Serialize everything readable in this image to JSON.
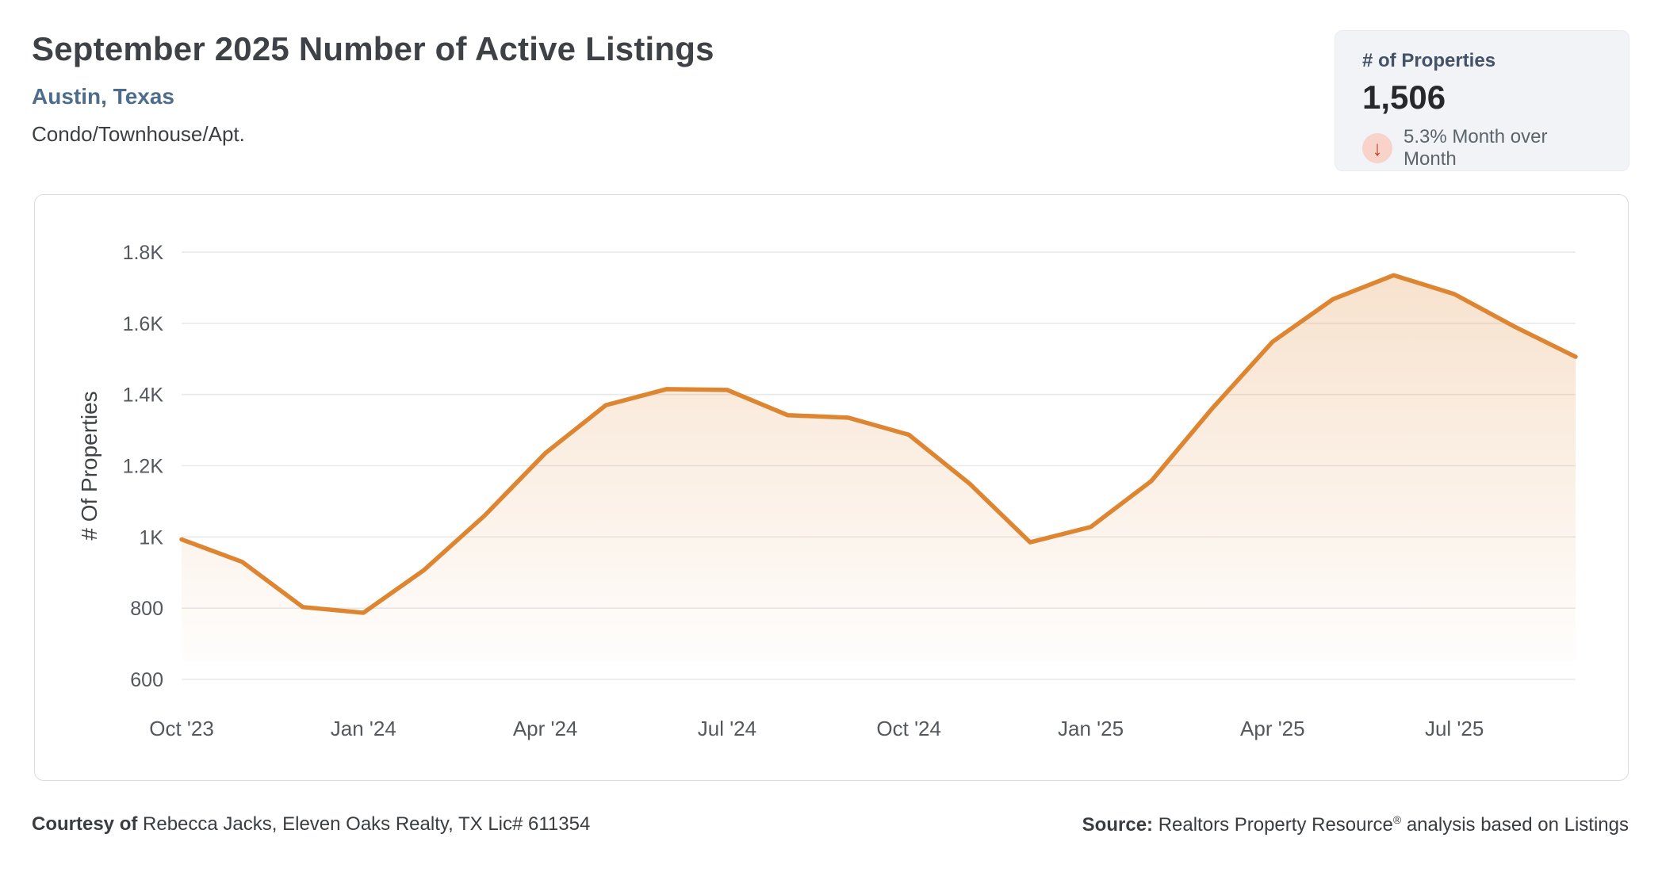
{
  "header": {
    "title": "September 2025 Number of Active Listings",
    "location": "Austin, Texas",
    "property_type": "Condo/Townhouse/Apt."
  },
  "stat_card": {
    "label": "# of Properties",
    "value": "1,506",
    "change_text": "5.3% Month over Month",
    "change_direction": "down",
    "arrow_glyph": "↓",
    "arrow_color": "#C2392A",
    "arrow_bg": "#F7D3CA"
  },
  "chart_data": {
    "type": "area",
    "title": "September 2025 Number of Active Listings",
    "xlabel": "",
    "ylabel": "# Of Properties",
    "ylim": [
      600,
      1800
    ],
    "grid": true,
    "legend": false,
    "line_color": "#DE8531",
    "fill_color": "#DF8531",
    "grid_color": "#E8E9EB",
    "tick_color": "#54585C",
    "axis_title_color": "#3F4347",
    "categories": [
      "Oct '23",
      "Nov '23",
      "Dec '23",
      "Jan '24",
      "Feb '24",
      "Mar '24",
      "Apr '24",
      "May '24",
      "Jun '24",
      "Jul '24",
      "Aug '24",
      "Sep '24",
      "Oct '24",
      "Nov '24",
      "Dec '24",
      "Jan '25",
      "Feb '25",
      "Mar '25",
      "Apr '25",
      "May '25",
      "Jun '25",
      "Jul '25",
      "Aug '25",
      "Sep '25"
    ],
    "values": [
      993,
      930,
      803,
      787,
      907,
      1060,
      1235,
      1370,
      1415,
      1413,
      1342,
      1335,
      1287,
      1150,
      985,
      1028,
      1157,
      1360,
      1548,
      1668,
      1735,
      1682,
      1590,
      1506
    ],
    "y_ticks": [
      {
        "value": 1800,
        "label": "1.8K"
      },
      {
        "value": 1600,
        "label": "1.6K"
      },
      {
        "value": 1400,
        "label": "1.4K"
      },
      {
        "value": 1200,
        "label": "1.2K"
      },
      {
        "value": 1000,
        "label": "1K"
      },
      {
        "value": 800,
        "label": "800"
      },
      {
        "value": 600,
        "label": "600"
      }
    ],
    "x_tick_indices": [
      0,
      3,
      6,
      9,
      12,
      15,
      18,
      21
    ]
  },
  "footer": {
    "courtesy_label": "Courtesy of",
    "courtesy_text": " Rebecca Jacks, Eleven Oaks Realty, TX Lic# 611354",
    "source_label": "Source:",
    "source_name": " Realtors Property Resource",
    "source_reg": "®",
    "source_suffix": " analysis based on Listings"
  }
}
